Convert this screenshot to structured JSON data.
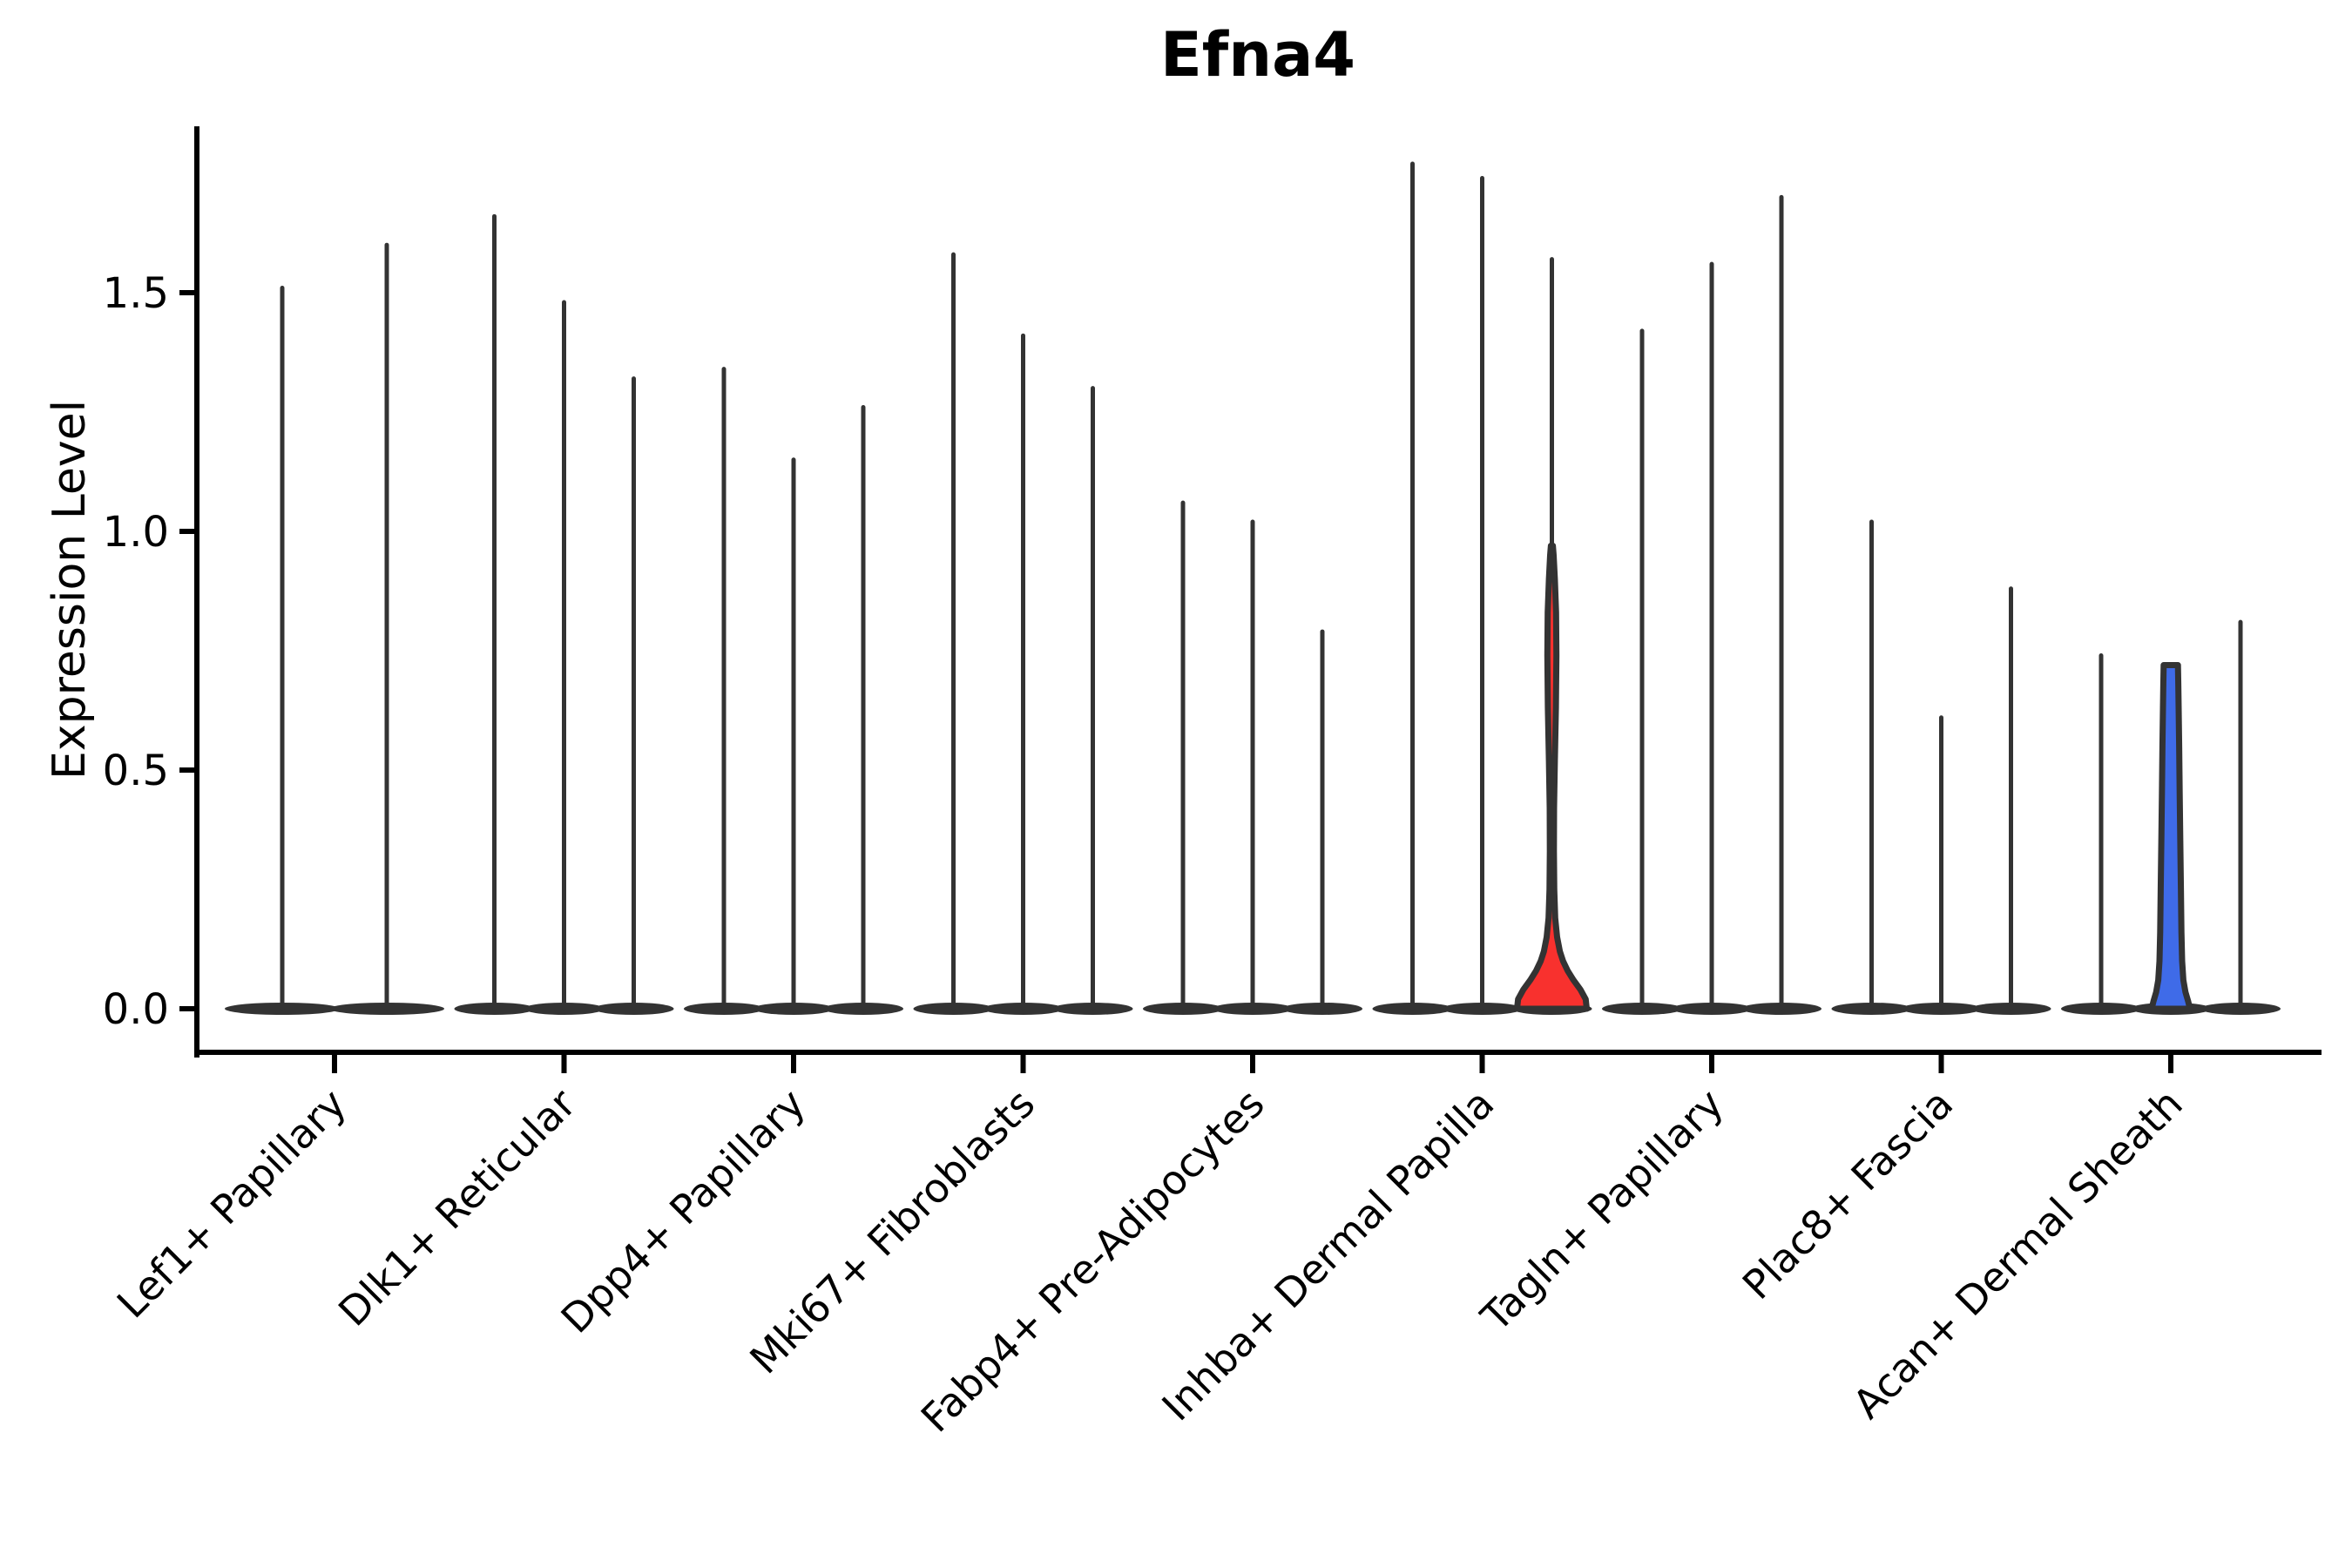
{
  "chart_data": {
    "type": "violin",
    "title": "Efna4",
    "xlabel": "",
    "ylabel": "Expression Level",
    "ytick_labels": [
      "0.0",
      "0.5",
      "1.0",
      "1.5"
    ],
    "ytick_values": [
      0.0,
      0.5,
      1.0,
      1.5
    ],
    "ylim": [
      -0.09,
      1.85
    ],
    "grid": false,
    "legend": "none",
    "categories": [
      "Lef1+ Papillary",
      "Dlk1+ Reticular",
      "Dpp4+ Papillary",
      "Mki67+ Fibroblasts",
      "Fabp4+ Pre-Adipocytes",
      "Inhba+ Dermal Papilla",
      "Tagln+ Papillary",
      "Plac8+ Fascia",
      "Acan+ Dermal Sheath"
    ],
    "groups": [
      {
        "category": "Lef1+ Papillary",
        "violins": [
          {
            "max": 1.51
          },
          {
            "max": 1.6
          }
        ]
      },
      {
        "category": "Dlk1+ Reticular",
        "violins": [
          {
            "max": 1.66
          },
          {
            "max": 1.48
          },
          {
            "max": 1.32
          }
        ]
      },
      {
        "category": "Dpp4+ Papillary",
        "violins": [
          {
            "max": 1.34
          },
          {
            "max": 1.15
          },
          {
            "max": 1.26
          }
        ]
      },
      {
        "category": "Mki67+ Fibroblasts",
        "violins": [
          {
            "max": 1.58
          },
          {
            "max": 1.41
          },
          {
            "max": 1.3
          }
        ]
      },
      {
        "category": "Fabp4+ Pre-Adipocytes",
        "violins": [
          {
            "max": 1.06
          },
          {
            "max": 1.02
          },
          {
            "max": 0.79
          }
        ]
      },
      {
        "category": "Inhba+ Dermal Papilla",
        "violins": [
          {
            "max": 1.77
          },
          {
            "max": 1.74
          },
          {
            "max": 1.57,
            "fill": "red",
            "body_top": 0.97,
            "profile": [
              [
                0,
                1.0
              ],
              [
                0.02,
                0.97
              ],
              [
                0.04,
                0.82
              ],
              [
                0.06,
                0.62
              ],
              [
                0.08,
                0.45
              ],
              [
                0.1,
                0.32
              ],
              [
                0.12,
                0.23
              ],
              [
                0.15,
                0.15
              ],
              [
                0.19,
                0.095
              ],
              [
                0.25,
                0.068
              ],
              [
                0.33,
                0.058
              ],
              [
                0.42,
                0.062
              ],
              [
                0.52,
                0.085
              ],
              [
                0.63,
                0.115
              ],
              [
                0.74,
                0.13
              ],
              [
                0.83,
                0.12
              ],
              [
                0.9,
                0.085
              ],
              [
                0.95,
                0.05
              ],
              [
                0.97,
                0.028
              ]
            ]
          }
        ]
      },
      {
        "category": "Tagln+ Papillary",
        "violins": [
          {
            "max": 1.42
          },
          {
            "max": 1.56
          },
          {
            "max": 1.7
          }
        ]
      },
      {
        "category": "Plac8+ Fascia",
        "violins": [
          {
            "max": 1.02
          },
          {
            "max": 0.61
          },
          {
            "max": 0.88
          }
        ]
      },
      {
        "category": "Acan+ Dermal Sheath",
        "violins": [
          {
            "max": 0.74
          },
          {
            "max": 0.72,
            "fill": "blue",
            "flat_top": true,
            "profile": [
              [
                0,
                0.55
              ],
              [
                0.015,
                0.5
              ],
              [
                0.035,
                0.42
              ],
              [
                0.06,
                0.36
              ],
              [
                0.1,
                0.325
              ],
              [
                0.16,
                0.305
              ],
              [
                0.25,
                0.29
              ],
              [
                0.35,
                0.272
              ],
              [
                0.45,
                0.255
              ],
              [
                0.55,
                0.24
              ],
              [
                0.63,
                0.225
              ],
              [
                0.68,
                0.215
              ],
              [
                0.72,
                0.205
              ]
            ]
          },
          {
            "max": 0.81
          }
        ]
      }
    ],
    "colors": {
      "line": "#333333",
      "red": "#F8312E",
      "blue": "#3F6BE8",
      "text": "#000000"
    }
  }
}
